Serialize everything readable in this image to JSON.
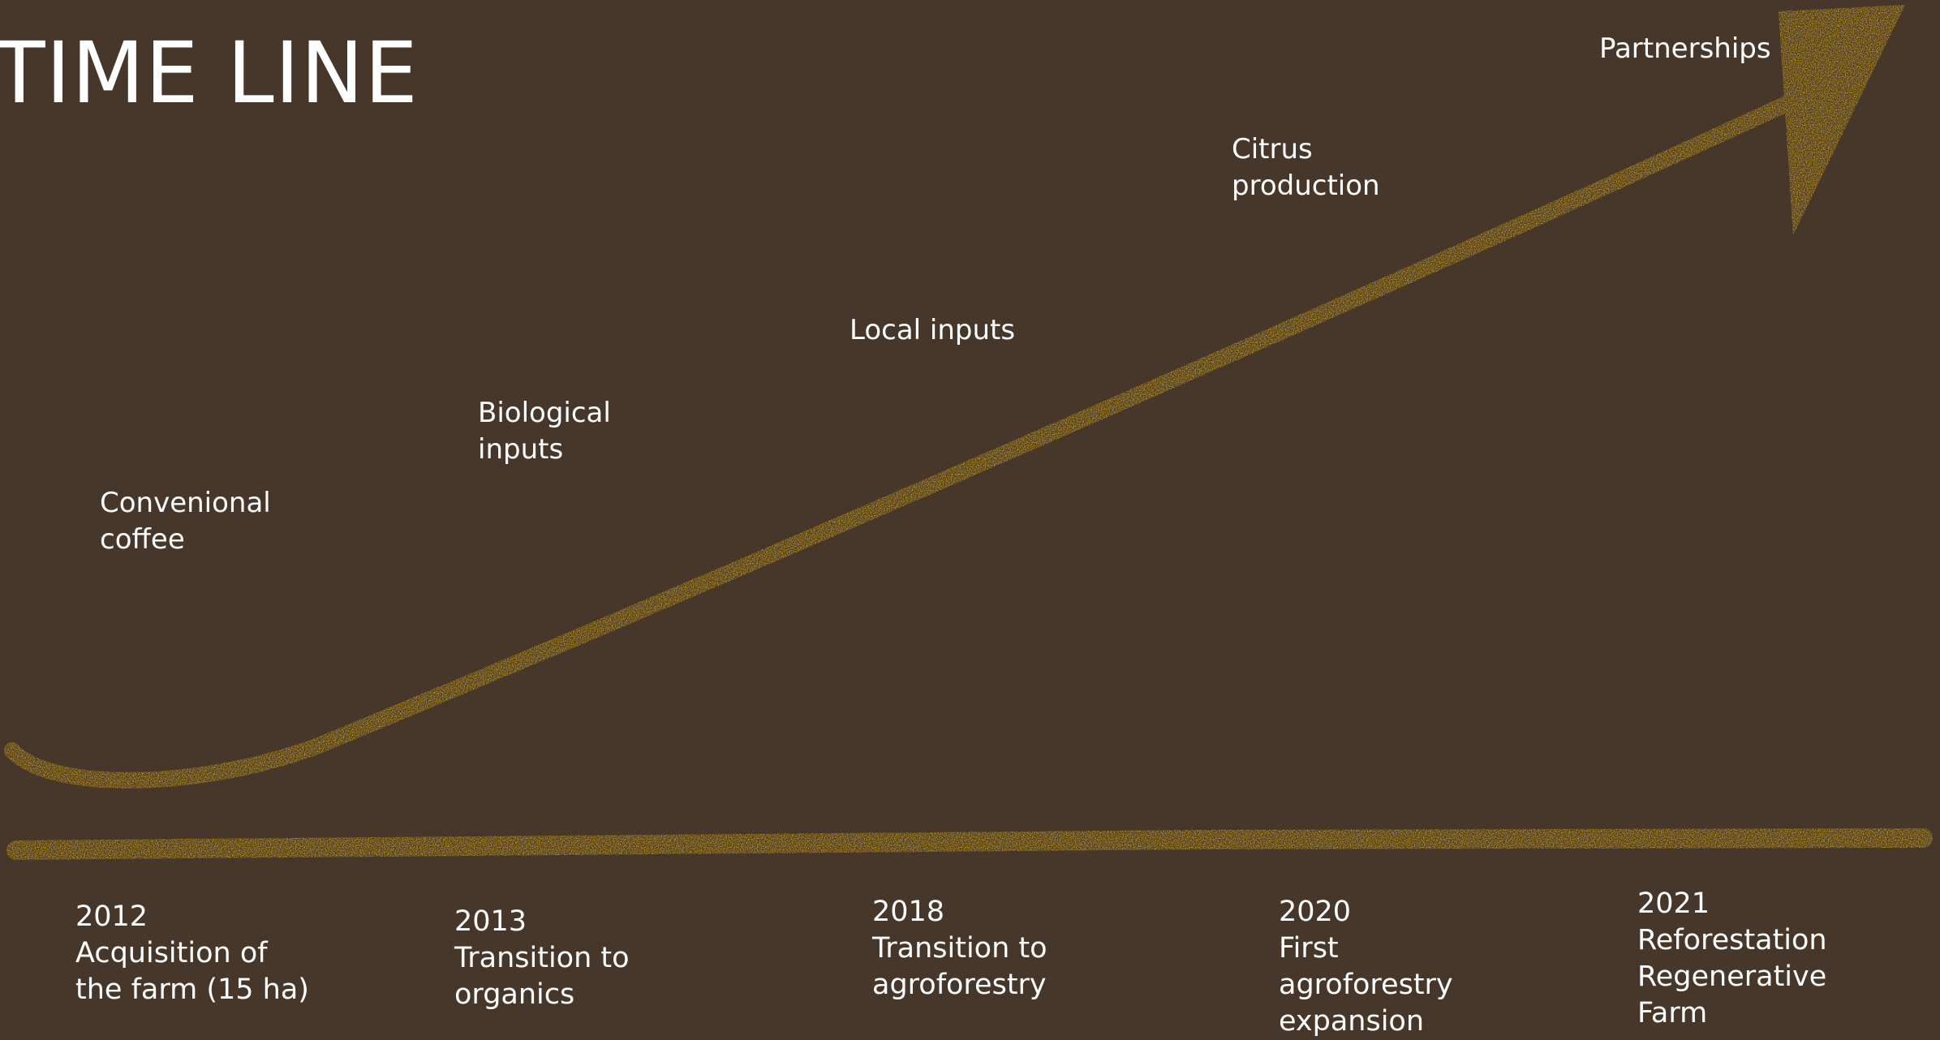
{
  "title": "TIME LINE",
  "accent_color": "#e0b218",
  "background_color": "#47372a",
  "upper_labels": [
    {
      "lines": [
        "Convenional",
        "coffee"
      ]
    },
    {
      "lines": [
        "Biological",
        "inputs"
      ]
    },
    {
      "lines": [
        "Local inputs"
      ]
    },
    {
      "lines": [
        "Citrus",
        "production"
      ]
    },
    {
      "lines": [
        "Partnerships"
      ]
    }
  ],
  "milestones": [
    {
      "year": "2012",
      "lines": [
        "Acquisition of",
        "the farm (15 ha)"
      ]
    },
    {
      "year": "2013",
      "lines": [
        "Transition to",
        "organics"
      ]
    },
    {
      "year": "2018",
      "lines": [
        "Transition to",
        "agroforestry"
      ]
    },
    {
      "year": "2020",
      "lines": [
        "First",
        "agroforestry",
        "expansion"
      ]
    },
    {
      "year": "2021",
      "lines": [
        "Reforestation",
        "Regenerative",
        "Farm"
      ]
    }
  ]
}
